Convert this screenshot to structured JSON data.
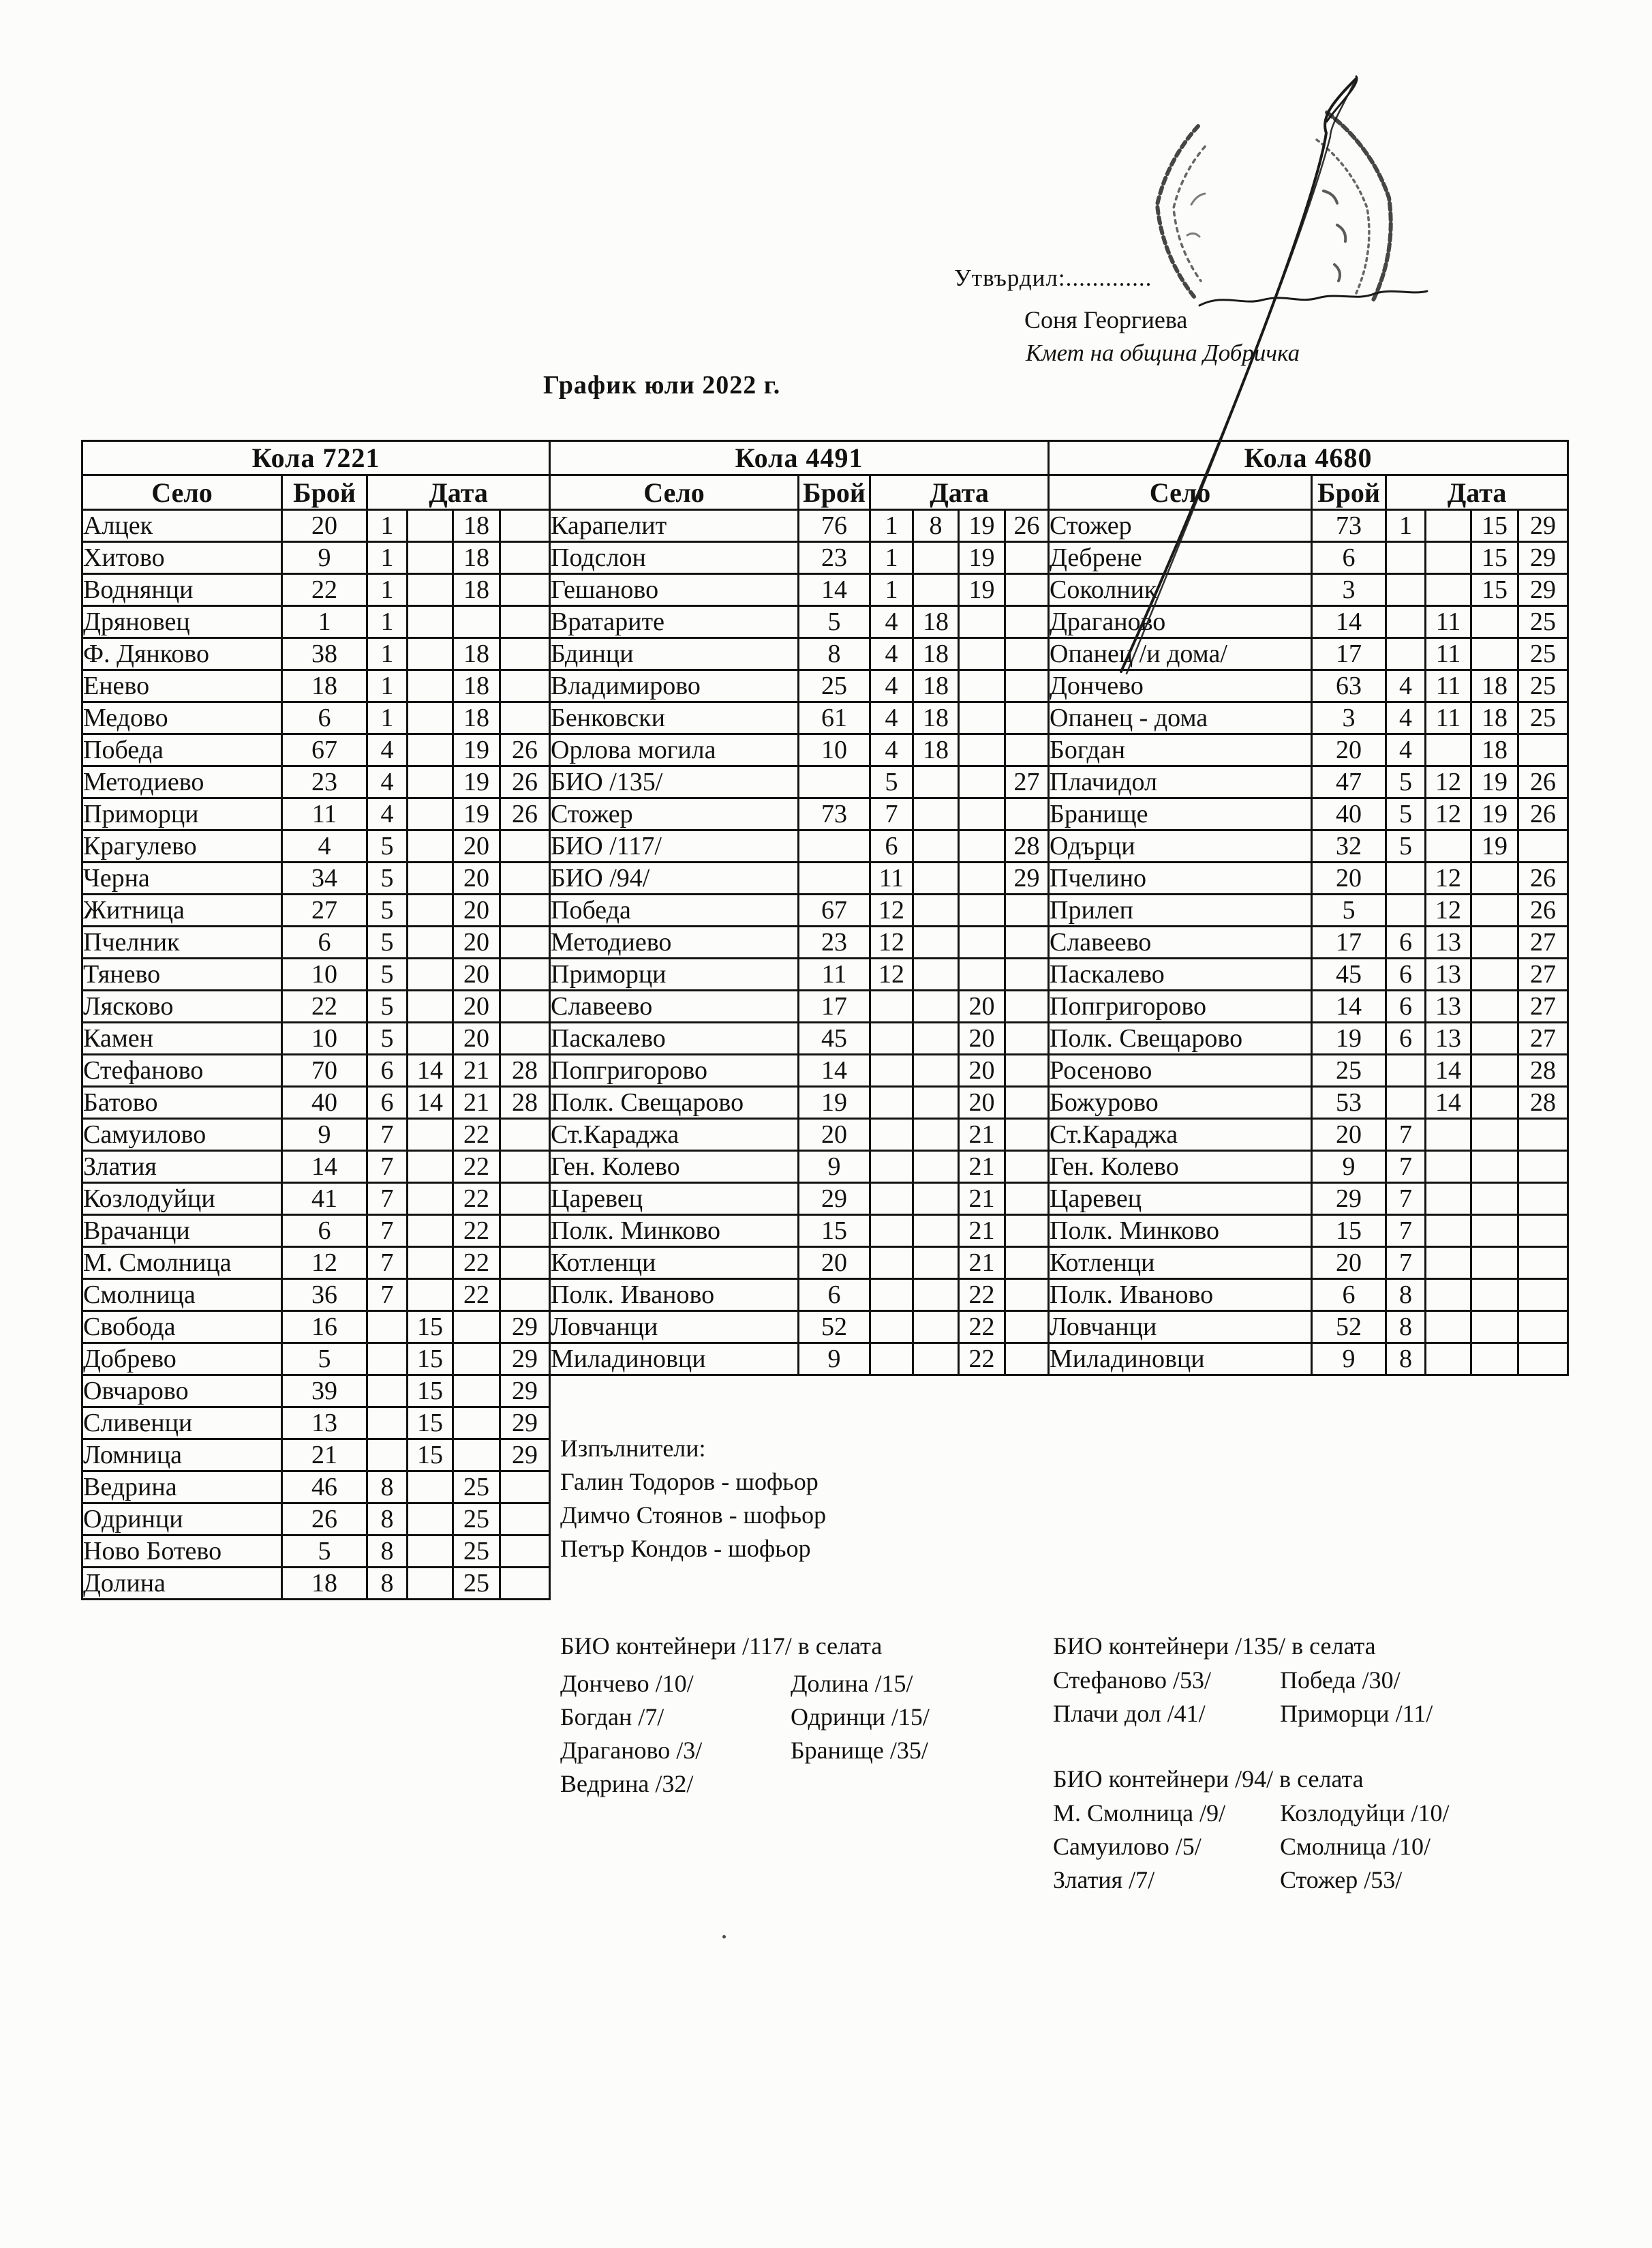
{
  "header": {
    "approved_label": "Утвърдил:.............",
    "approver_name": "Соня Георгиева",
    "approver_title": "Кмет  на община Добричка",
    "title": "График юли 2022 г."
  },
  "columns": {
    "village": "Село",
    "count": "Брой",
    "date": "Дата"
  },
  "tables": [
    {
      "title": "Кола 7221",
      "rows": [
        {
          "v": "Алцек",
          "c": "20",
          "d": [
            "1",
            "",
            "18",
            ""
          ]
        },
        {
          "v": "Хитово",
          "c": "9",
          "d": [
            "1",
            "",
            "18",
            ""
          ]
        },
        {
          "v": "Воднянци",
          "c": "22",
          "d": [
            "1",
            "",
            "18",
            ""
          ]
        },
        {
          "v": "Дряновец",
          "c": "1",
          "d": [
            "1",
            "",
            "",
            ""
          ]
        },
        {
          "v": "Ф. Дянково",
          "c": "38",
          "d": [
            "1",
            "",
            "18",
            ""
          ]
        },
        {
          "v": "Енево",
          "c": "18",
          "d": [
            "1",
            "",
            "18",
            ""
          ]
        },
        {
          "v": "Медово",
          "c": "6",
          "d": [
            "1",
            "",
            "18",
            ""
          ]
        },
        {
          "v": "Победа",
          "c": "67",
          "d": [
            "4",
            "",
            "19",
            "26"
          ]
        },
        {
          "v": "Методиево",
          "c": "23",
          "d": [
            "4",
            "",
            "19",
            "26"
          ]
        },
        {
          "v": "Приморци",
          "c": "11",
          "d": [
            "4",
            "",
            "19",
            "26"
          ]
        },
        {
          "v": "Крагулево",
          "c": "4",
          "d": [
            "5",
            "",
            "20",
            ""
          ]
        },
        {
          "v": "Черна",
          "c": "34",
          "d": [
            "5",
            "",
            "20",
            ""
          ]
        },
        {
          "v": "Житница",
          "c": "27",
          "d": [
            "5",
            "",
            "20",
            ""
          ]
        },
        {
          "v": "Пчелник",
          "c": "6",
          "d": [
            "5",
            "",
            "20",
            ""
          ]
        },
        {
          "v": "Тянево",
          "c": "10",
          "d": [
            "5",
            "",
            "20",
            ""
          ]
        },
        {
          "v": "Лясково",
          "c": "22",
          "d": [
            "5",
            "",
            "20",
            ""
          ]
        },
        {
          "v": "Камен",
          "c": "10",
          "d": [
            "5",
            "",
            "20",
            ""
          ]
        },
        {
          "v": "Стефаново",
          "c": "70",
          "d": [
            "6",
            "14",
            "21",
            "28"
          ]
        },
        {
          "v": "Батово",
          "c": "40",
          "d": [
            "6",
            "14",
            "21",
            "28"
          ]
        },
        {
          "v": "Самуилово",
          "c": "9",
          "d": [
            "7",
            "",
            "22",
            ""
          ]
        },
        {
          "v": "Златия",
          "c": "14",
          "d": [
            "7",
            "",
            "22",
            ""
          ]
        },
        {
          "v": "Козлодуйци",
          "c": "41",
          "d": [
            "7",
            "",
            "22",
            ""
          ]
        },
        {
          "v": "Врачанци",
          "c": "6",
          "d": [
            "7",
            "",
            "22",
            ""
          ]
        },
        {
          "v": "М. Смолница",
          "c": "12",
          "d": [
            "7",
            "",
            "22",
            ""
          ]
        },
        {
          "v": "Смолница",
          "c": "36",
          "d": [
            "7",
            "",
            "22",
            ""
          ]
        },
        {
          "v": "Свобода",
          "c": "16",
          "d": [
            "",
            "15",
            "",
            "29"
          ]
        },
        {
          "v": "Добрево",
          "c": "5",
          "d": [
            "",
            "15",
            "",
            "29"
          ]
        },
        {
          "v": "Овчарово",
          "c": "39",
          "d": [
            "",
            "15",
            "",
            "29"
          ]
        },
        {
          "v": "Сливенци",
          "c": "13",
          "d": [
            "",
            "15",
            "",
            "29"
          ]
        },
        {
          "v": "Ломница",
          "c": "21",
          "d": [
            "",
            "15",
            "",
            "29"
          ]
        },
        {
          "v": "Ведрина",
          "c": "46",
          "d": [
            "8",
            "",
            "25",
            ""
          ]
        },
        {
          "v": "Одринци",
          "c": "26",
          "d": [
            "8",
            "",
            "25",
            ""
          ]
        },
        {
          "v": "Ново Ботево",
          "c": "5",
          "d": [
            "8",
            "",
            "25",
            ""
          ]
        },
        {
          "v": "Долина",
          "c": "18",
          "d": [
            "8",
            "",
            "25",
            ""
          ]
        }
      ]
    },
    {
      "title": "Кола 4491",
      "rows": [
        {
          "v": "Карапелит",
          "c": "76",
          "d": [
            "1",
            "8",
            "19",
            "26"
          ]
        },
        {
          "v": "Подслон",
          "c": "23",
          "d": [
            "1",
            "",
            "19",
            ""
          ]
        },
        {
          "v": "Гешаново",
          "c": "14",
          "d": [
            "1",
            "",
            "19",
            ""
          ]
        },
        {
          "v": "Вратарите",
          "c": "5",
          "d": [
            "4",
            "18",
            "",
            ""
          ]
        },
        {
          "v": "Бдинци",
          "c": "8",
          "d": [
            "4",
            "18",
            "",
            ""
          ]
        },
        {
          "v": "Владимирово",
          "c": "25",
          "d": [
            "4",
            "18",
            "",
            ""
          ]
        },
        {
          "v": "Бенковски",
          "c": "61",
          "d": [
            "4",
            "18",
            "",
            ""
          ]
        },
        {
          "v": "Орлова могила",
          "c": "10",
          "d": [
            "4",
            "18",
            "",
            ""
          ]
        },
        {
          "v": "БИО /135/",
          "c": "",
          "d": [
            "5",
            "",
            "",
            "27"
          ]
        },
        {
          "v": "Стожер",
          "c": "73",
          "d": [
            "7",
            "",
            "",
            ""
          ]
        },
        {
          "v": "БИО /117/",
          "c": "",
          "d": [
            "6",
            "",
            "",
            "28"
          ]
        },
        {
          "v": "БИО /94/",
          "c": "",
          "d": [
            "11",
            "",
            "",
            "29"
          ]
        },
        {
          "v": "Победа",
          "c": "67",
          "d": [
            "12",
            "",
            "",
            ""
          ]
        },
        {
          "v": "Методиево",
          "c": "23",
          "d": [
            "12",
            "",
            "",
            ""
          ]
        },
        {
          "v": "Приморци",
          "c": "11",
          "d": [
            "12",
            "",
            "",
            ""
          ]
        },
        {
          "v": "Славеево",
          "c": "17",
          "d": [
            "",
            "",
            "20",
            ""
          ]
        },
        {
          "v": "Паскалево",
          "c": "45",
          "d": [
            "",
            "",
            "20",
            ""
          ]
        },
        {
          "v": "Попгригорово",
          "c": "14",
          "d": [
            "",
            "",
            "20",
            ""
          ]
        },
        {
          "v": "Полк. Свещарово",
          "c": "19",
          "d": [
            "",
            "",
            "20",
            ""
          ]
        },
        {
          "v": "Ст.Караджа",
          "c": "20",
          "d": [
            "",
            "",
            "21",
            ""
          ]
        },
        {
          "v": "Ген. Колево",
          "c": "9",
          "d": [
            "",
            "",
            "21",
            ""
          ]
        },
        {
          "v": "Царевец",
          "c": "29",
          "d": [
            "",
            "",
            "21",
            ""
          ]
        },
        {
          "v": "Полк. Минково",
          "c": "15",
          "d": [
            "",
            "",
            "21",
            ""
          ]
        },
        {
          "v": "Котленци",
          "c": "20",
          "d": [
            "",
            "",
            "21",
            ""
          ]
        },
        {
          "v": "Полк. Иваново",
          "c": "6",
          "d": [
            "",
            "",
            "22",
            ""
          ]
        },
        {
          "v": "Ловчанци",
          "c": "52",
          "d": [
            "",
            "",
            "22",
            ""
          ]
        },
        {
          "v": "Миладиновци",
          "c": "9",
          "d": [
            "",
            "",
            "22",
            ""
          ]
        }
      ]
    },
    {
      "title": "Кола 4680",
      "rows": [
        {
          "v": "Стожер",
          "c": "73",
          "d": [
            "1",
            "",
            "15",
            "29"
          ]
        },
        {
          "v": "Дебрене",
          "c": "6",
          "d": [
            "",
            "",
            "15",
            "29"
          ]
        },
        {
          "v": "Соколник",
          "c": "3",
          "d": [
            "",
            "",
            "15",
            "29"
          ]
        },
        {
          "v": "Драганово",
          "c": "14",
          "d": [
            "",
            "11",
            "",
            "25"
          ]
        },
        {
          "v": "Опанец /и дома/",
          "c": "17",
          "d": [
            "",
            "11",
            "",
            "25"
          ]
        },
        {
          "v": "Дончево",
          "c": "63",
          "d": [
            "4",
            "11",
            "18",
            "25"
          ]
        },
        {
          "v": "Опанец - дома",
          "c": "3",
          "d": [
            "4",
            "11",
            "18",
            "25"
          ]
        },
        {
          "v": "Богдан",
          "c": "20",
          "d": [
            "4",
            "",
            "18",
            ""
          ]
        },
        {
          "v": "Плачидол",
          "c": "47",
          "d": [
            "5",
            "12",
            "19",
            "26"
          ]
        },
        {
          "v": "Бранище",
          "c": "40",
          "d": [
            "5",
            "12",
            "19",
            "26"
          ]
        },
        {
          "v": "Одърци",
          "c": "32",
          "d": [
            "5",
            "",
            "19",
            ""
          ]
        },
        {
          "v": "Пчелино",
          "c": "20",
          "d": [
            "",
            "12",
            "",
            "26"
          ]
        },
        {
          "v": "Прилеп",
          "c": "5",
          "d": [
            "",
            "12",
            "",
            "26"
          ]
        },
        {
          "v": "Славеево",
          "c": "17",
          "d": [
            "6",
            "13",
            "",
            "27"
          ]
        },
        {
          "v": "Паскалево",
          "c": "45",
          "d": [
            "6",
            "13",
            "",
            "27"
          ]
        },
        {
          "v": "Попгригорово",
          "c": "14",
          "d": [
            "6",
            "13",
            "",
            "27"
          ]
        },
        {
          "v": "Полк. Свещарово",
          "c": "19",
          "d": [
            "6",
            "13",
            "",
            "27"
          ]
        },
        {
          "v": "Росеново",
          "c": "25",
          "d": [
            "",
            "14",
            "",
            "28"
          ]
        },
        {
          "v": "Божурово",
          "c": "53",
          "d": [
            "",
            "14",
            "",
            "28"
          ]
        },
        {
          "v": "Ст.Караджа",
          "c": "20",
          "d": [
            "7",
            "",
            "",
            ""
          ]
        },
        {
          "v": "Ген. Колево",
          "c": "9",
          "d": [
            "7",
            "",
            "",
            ""
          ]
        },
        {
          "v": "Царевец",
          "c": "29",
          "d": [
            "7",
            "",
            "",
            ""
          ]
        },
        {
          "v": "Полк. Минково",
          "c": "15",
          "d": [
            "7",
            "",
            "",
            ""
          ]
        },
        {
          "v": "Котленци",
          "c": "20",
          "d": [
            "7",
            "",
            "",
            ""
          ]
        },
        {
          "v": "Полк. Иваново",
          "c": "6",
          "d": [
            "8",
            "",
            "",
            ""
          ]
        },
        {
          "v": "Ловчанци",
          "c": "52",
          "d": [
            "8",
            "",
            "",
            ""
          ]
        },
        {
          "v": "Миладиновци",
          "c": "9",
          "d": [
            "8",
            "",
            "",
            ""
          ]
        }
      ]
    }
  ],
  "executors": {
    "heading": "Изпълнители:",
    "items": [
      "Галин Тодоров - шофьор",
      "Димчо Стоянов - шофьор",
      "Петър Кондов - шофьор"
    ]
  },
  "bio_sections": [
    {
      "title": "БИО контейнери /117/ в селата",
      "col1": [
        "Дончево /10/",
        "Богдан /7/",
        "Драганово /3/",
        "Ведрина /32/"
      ],
      "col2": [
        "Долина /15/",
        "Одринци /15/",
        "Бранище /35/"
      ]
    },
    {
      "title": "БИО контейнери /135/ в селата",
      "col1": [
        "Стефаново /53/",
        "Плачи дол /41/"
      ],
      "col2": [
        "Победа /30/",
        "Приморци /11/"
      ]
    },
    {
      "title": "БИО контейнери /94/ в селата",
      "col1": [
        "М. Смолница /9/",
        "Самуилово /5/",
        "Златия /7/"
      ],
      "col2": [
        "Козлодуйци /10/",
        "Смолница /10/",
        "Стожер /53/"
      ]
    }
  ],
  "decorations": {
    "stamp_left": "round-seal-fragment-left",
    "stamp_right": "round-seal-fragment-right",
    "pen_stroke": "diagonal-pen-stroke",
    "signature": "signature-squiggle",
    "ink_color": "#1b1b1b"
  }
}
